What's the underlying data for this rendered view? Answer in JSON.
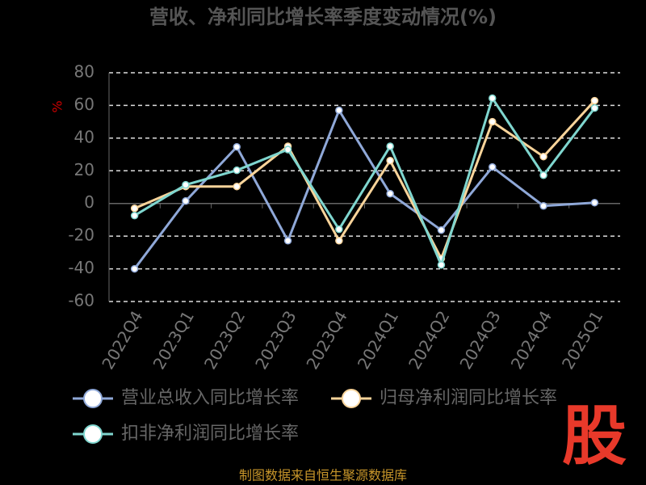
{
  "chart_data": {
    "type": "line",
    "title": "营收、净利同比增长率季度变动情况(%)",
    "y_label": "%",
    "categories": [
      "2022Q4",
      "2023Q1",
      "2023Q2",
      "2023Q3",
      "2023Q4",
      "2024Q1",
      "2024Q2",
      "2024Q3",
      "2024Q4",
      "2025Q1"
    ],
    "series": [
      {
        "name": "营业总收入同比增长率",
        "color": "#8fa8d8",
        "values": [
          -40,
          1.5,
          34.6,
          -22.8,
          57,
          6,
          -16.3,
          22.3,
          -1.5,
          0.5
        ]
      },
      {
        "name": "归母净利润同比增长率",
        "color": "#f9d49a",
        "values": [
          -3,
          10.4,
          10.4,
          35,
          -22.8,
          26.2,
          -33.7,
          50,
          28.7,
          62.9
        ]
      },
      {
        "name": "扣非净利润同比增长率",
        "color": "#7fd6cf",
        "values": [
          -7.4,
          11.4,
          20.3,
          33,
          -15.8,
          35,
          -37.6,
          64.4,
          17.3,
          58.4
        ]
      }
    ],
    "ylim": [
      -60,
      80
    ],
    "yticks": [
      -60,
      -40,
      -20,
      0,
      20,
      40,
      60,
      80
    ],
    "grid": true,
    "source": "制图数据来自恒生聚源数据库",
    "logo": "股"
  }
}
